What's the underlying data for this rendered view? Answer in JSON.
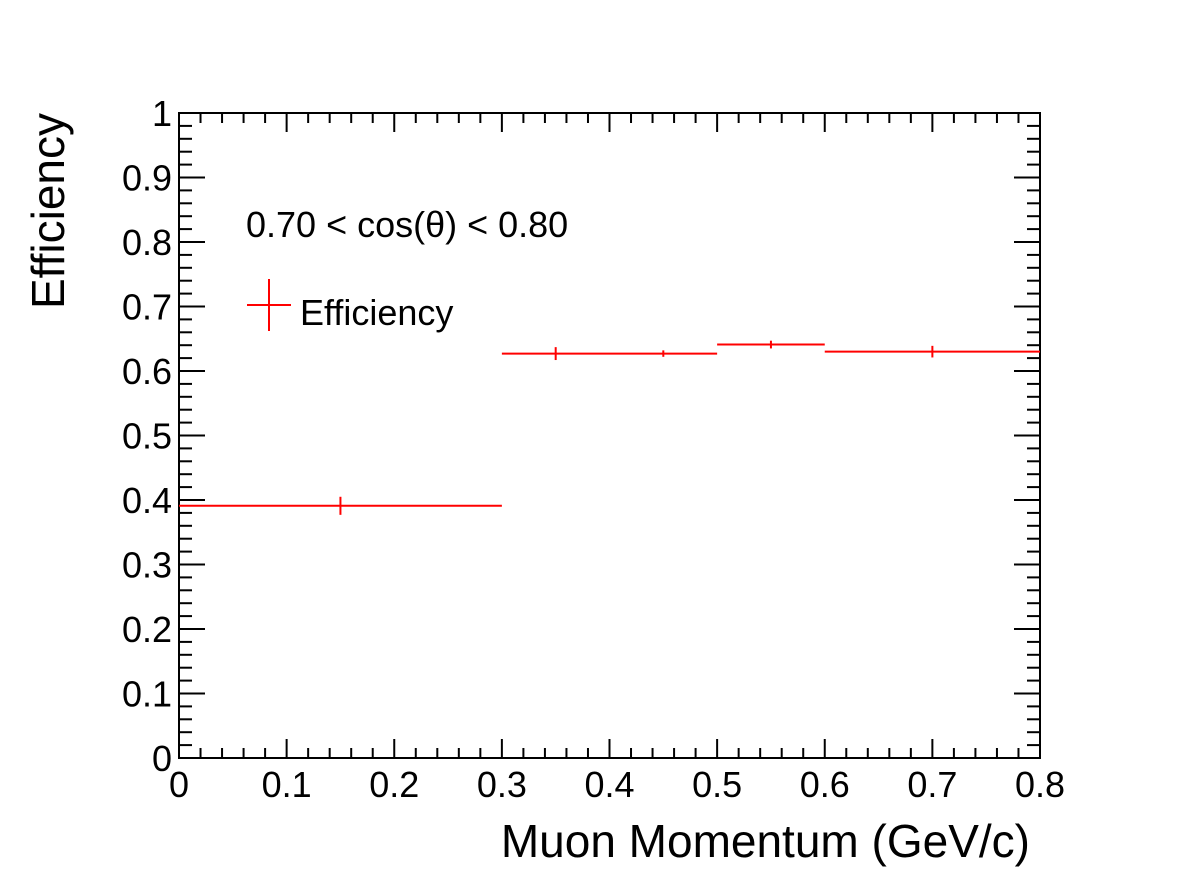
{
  "chart_data": {
    "type": "scatter",
    "xlabel": "Muon Momentum (GeV/c)",
    "ylabel": "Efficiency",
    "xlim": [
      0,
      0.8
    ],
    "ylim": [
      0,
      1
    ],
    "x_ticks": [
      "0",
      "0.1",
      "0.2",
      "0.3",
      "0.4",
      "0.5",
      "0.6",
      "0.7",
      "0.8"
    ],
    "y_ticks": [
      "0",
      "0.1",
      "0.2",
      "0.3",
      "0.4",
      "0.5",
      "0.6",
      "0.7",
      "0.8",
      "0.9",
      "1"
    ],
    "annotation": "0.70 < cos(θ) < 0.80",
    "grid": false,
    "legend_position": "top-left",
    "series": [
      {
        "name": "Efficiency",
        "color": "#ff0000",
        "points": [
          {
            "x": 0.15,
            "x_low": 0.0,
            "x_high": 0.3,
            "y": 0.391,
            "y_err": 0.014
          },
          {
            "x": 0.35,
            "x_low": 0.3,
            "x_high": 0.4,
            "y": 0.627,
            "y_err": 0.01
          },
          {
            "x": 0.45,
            "x_low": 0.4,
            "x_high": 0.5,
            "y": 0.627,
            "y_err": 0.005
          },
          {
            "x": 0.55,
            "x_low": 0.5,
            "x_high": 0.6,
            "y": 0.641,
            "y_err": 0.006
          },
          {
            "x": 0.7,
            "x_low": 0.6,
            "x_high": 0.8,
            "y": 0.63,
            "y_err": 0.009
          }
        ]
      }
    ]
  }
}
